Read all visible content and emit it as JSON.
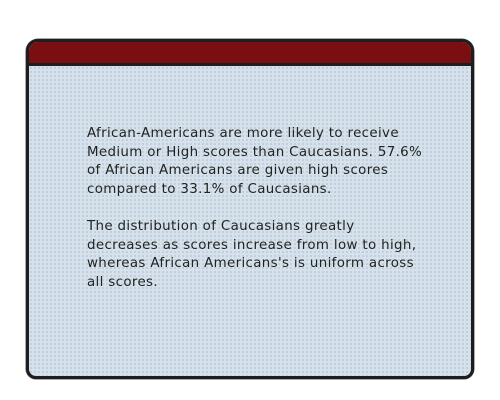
{
  "window": {
    "paragraphs": [
      "African-Americans are more likely to receive Medium or High scores than Caucasians. 57.6% of African Americans are given high scores compared to 33.1% of Caucasians.",
      "The distribution of Caucasians greatly decreases as scores increase from low to high, whereas African Americans's is uniform across all scores."
    ]
  },
  "colors": {
    "titlebar": "#7a0f12",
    "panel_background": "#d5e2ec",
    "border": "#1e1e1e",
    "text": "#222222"
  }
}
